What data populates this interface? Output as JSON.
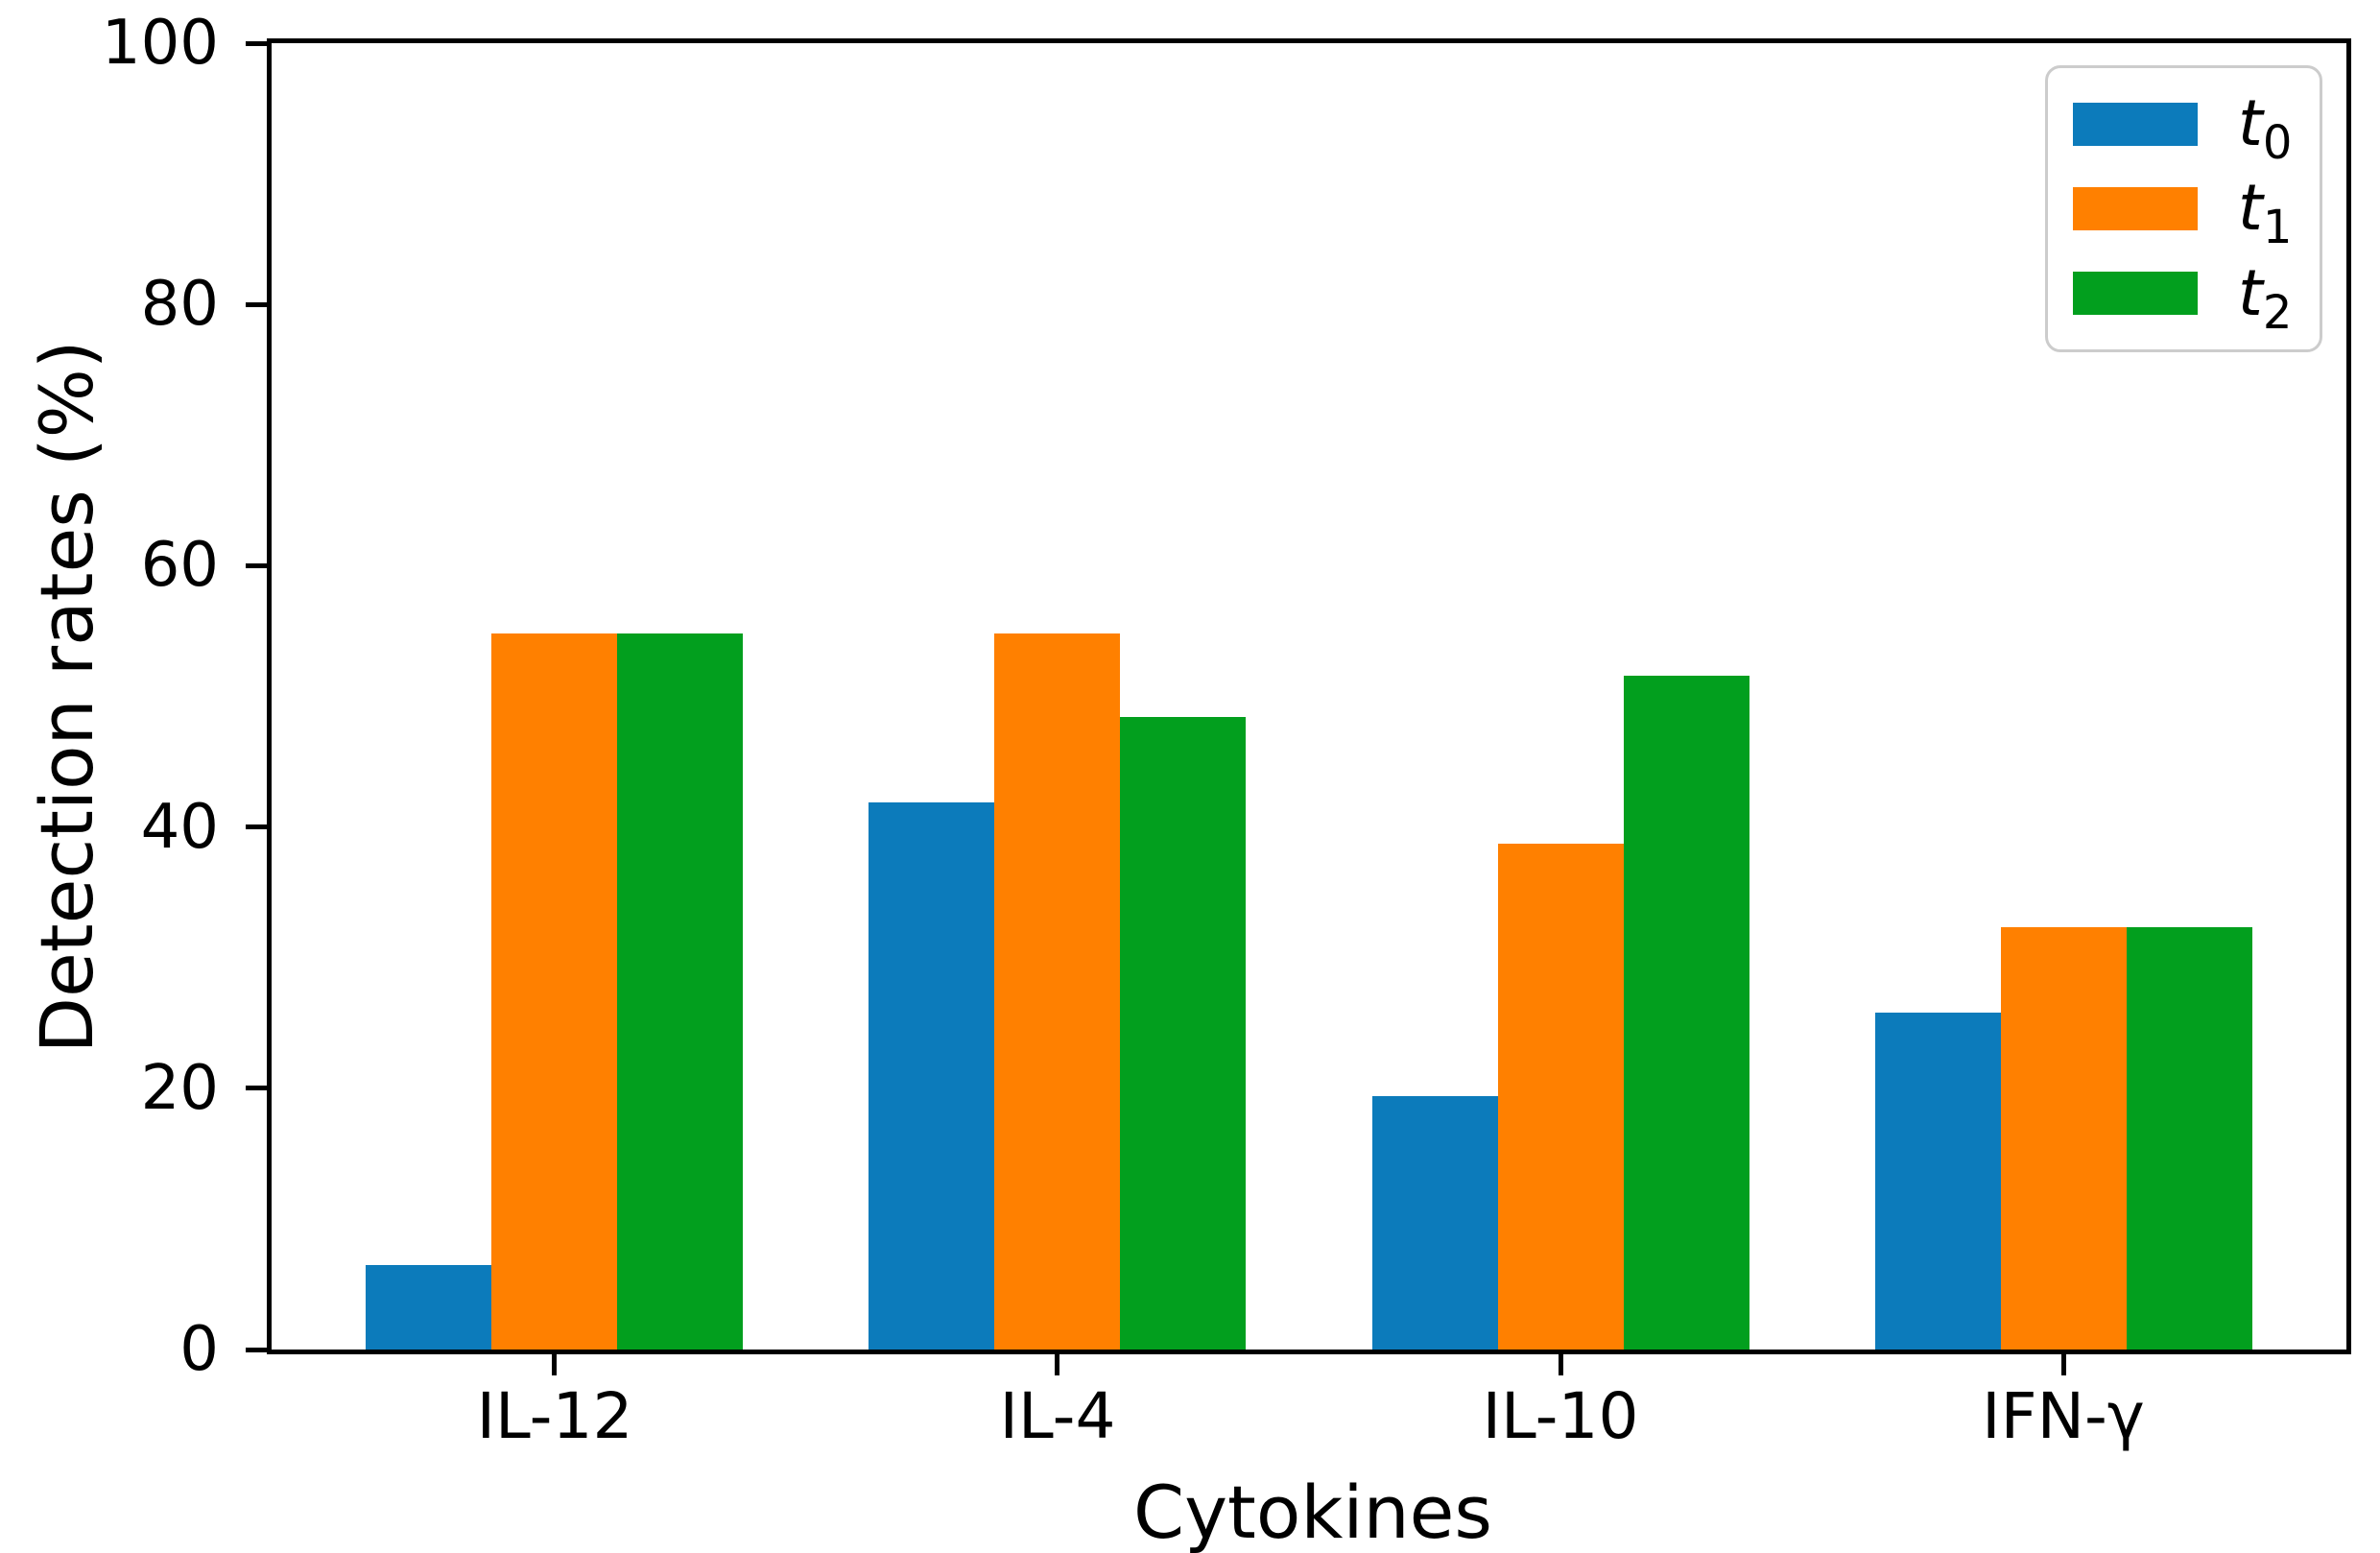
{
  "chart_data": {
    "type": "bar",
    "title": "",
    "xlabel": "Cytokines",
    "ylabel": "Detection rates (%)",
    "categories": [
      "IL-12",
      "IL-4",
      "IL-10",
      "IFN-γ"
    ],
    "series": [
      {
        "name": "t",
        "subscript": "0",
        "color": "#0c7bbb",
        "values": [
          6.5,
          41.9,
          19.4,
          25.8
        ]
      },
      {
        "name": "t",
        "subscript": "1",
        "color": "#ff8000",
        "values": [
          54.8,
          54.8,
          38.7,
          32.3
        ]
      },
      {
        "name": "t",
        "subscript": "2",
        "color": "#029f1e",
        "values": [
          54.8,
          48.4,
          51.6,
          32.3
        ]
      }
    ],
    "ylim": [
      0,
      100
    ],
    "yticks": [
      0,
      20,
      40,
      60,
      80,
      100
    ],
    "grid": false,
    "legend_position": "upper right",
    "bar_group_width_units": 0.25,
    "axis_color": "#000000",
    "legend_border_color": "#cccccc"
  }
}
